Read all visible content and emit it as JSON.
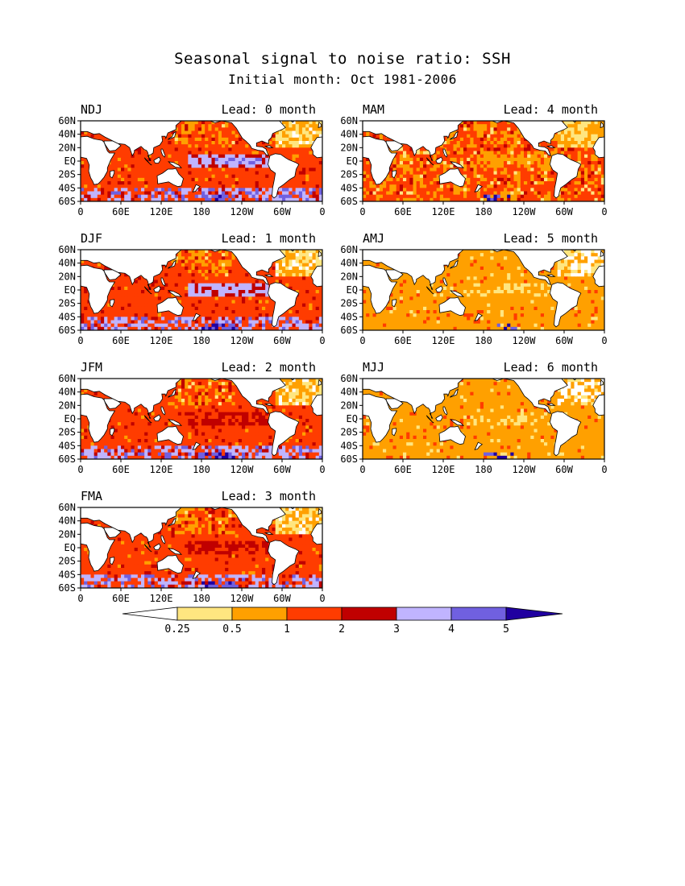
{
  "header": {
    "title": "Seasonal signal to noise ratio: SSH",
    "subtitle": "Initial month: Oct 1981-2006"
  },
  "chart_data": {
    "type": "heatmap",
    "title": "Seasonal signal to noise ratio: SSH",
    "subtitle": "Initial month: Oct 1981-2006",
    "variable": "SSH signal-to-noise ratio",
    "x_ticks": [
      "0",
      "60E",
      "120E",
      "180",
      "120W",
      "60W",
      "0"
    ],
    "x_tick_lon": [
      0,
      60,
      120,
      180,
      240,
      300,
      360
    ],
    "y_ticks": [
      "60N",
      "40N",
      "20N",
      "EQ",
      "20S",
      "40S",
      "60S"
    ],
    "y_tick_lat": [
      60,
      40,
      20,
      0,
      -20,
      -40,
      -60
    ],
    "xlim": [
      0,
      360
    ],
    "ylim": [
      -60,
      60
    ],
    "panels": [
      {
        "season": "NDJ",
        "lead_label": "Lead: 0 month",
        "lead": 0,
        "dominant_class": 3
      },
      {
        "season": "DJF",
        "lead_label": "Lead: 1 month",
        "lead": 1,
        "dominant_class": 3
      },
      {
        "season": "JFM",
        "lead_label": "Lead: 2 month",
        "lead": 2,
        "dominant_class": 3
      },
      {
        "season": "FMA",
        "lead_label": "Lead: 3 month",
        "lead": 3,
        "dominant_class": 3
      },
      {
        "season": "MAM",
        "lead_label": "Lead: 4 month",
        "lead": 4,
        "dominant_class": 3
      },
      {
        "season": "AMJ",
        "lead_label": "Lead: 5 month",
        "lead": 5,
        "dominant_class": 2
      },
      {
        "season": "MJJ",
        "lead_label": "Lead: 6 month",
        "lead": 6,
        "dominant_class": 2
      }
    ],
    "colorbar": {
      "boundaries": [
        "0.25",
        "0.5",
        "1",
        "2",
        "3",
        "4",
        "5"
      ],
      "colors": [
        "#ffffff",
        "#ffe680",
        "#ffa000",
        "#ff3c00",
        "#c00000",
        "#c0b4ff",
        "#7060e0",
        "#2000a0"
      ],
      "extend": "both"
    }
  }
}
